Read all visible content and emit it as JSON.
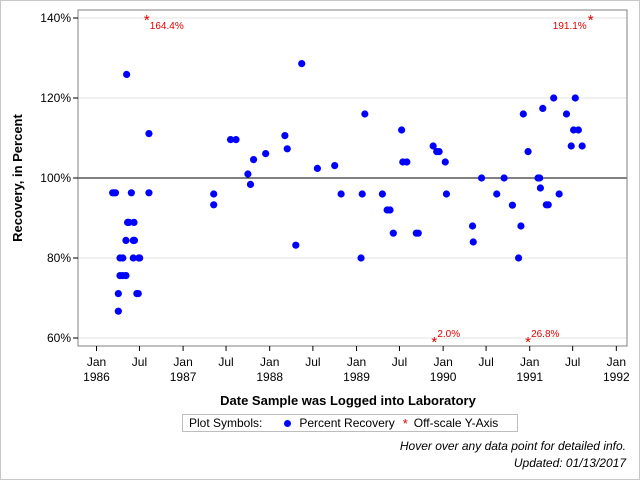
{
  "chart_data": {
    "type": "scatter",
    "title": "",
    "xlabel": "Date Sample was Logged into Laboratory",
    "ylabel": "Recovery, in Percent",
    "xlim": [
      "1985-10-15",
      "1992-02-15"
    ],
    "ylim": [
      58,
      142
    ],
    "reference_line": 100,
    "grid": true,
    "y_ticks": [
      {
        "v": 60,
        "label": "60%"
      },
      {
        "v": 80,
        "label": "80%"
      },
      {
        "v": 100,
        "label": "100%"
      },
      {
        "v": 120,
        "label": "120%"
      },
      {
        "v": 140,
        "label": "140%"
      }
    ],
    "x_ticks": [
      {
        "date": "1986-01-01",
        "label": "Jan",
        "year": "1986"
      },
      {
        "date": "1986-07-01",
        "label": "Jul",
        "year": ""
      },
      {
        "date": "1987-01-01",
        "label": "Jan",
        "year": "1987"
      },
      {
        "date": "1987-07-01",
        "label": "Jul",
        "year": ""
      },
      {
        "date": "1988-01-01",
        "label": "Jan",
        "year": "1988"
      },
      {
        "date": "1988-07-01",
        "label": "Jul",
        "year": ""
      },
      {
        "date": "1989-01-01",
        "label": "Jan",
        "year": "1989"
      },
      {
        "date": "1989-07-01",
        "label": "Jul",
        "year": ""
      },
      {
        "date": "1990-01-01",
        "label": "Jan",
        "year": "1990"
      },
      {
        "date": "1990-07-01",
        "label": "Jul",
        "year": ""
      },
      {
        "date": "1991-01-01",
        "label": "Jan",
        "year": "1991"
      },
      {
        "date": "1991-07-01",
        "label": "Jul",
        "year": ""
      },
      {
        "date": "1992-01-01",
        "label": "Jan",
        "year": "1992"
      }
    ],
    "series": [
      {
        "name": "Percent Recovery",
        "color": "#0000ff",
        "points": [
          {
            "x": "1986-03-10",
            "y": 96.3
          },
          {
            "x": "1986-03-16",
            "y": 96.3
          },
          {
            "x": "1986-03-22",
            "y": 96.3
          },
          {
            "x": "1986-04-03",
            "y": 71.1
          },
          {
            "x": "1986-04-03",
            "y": 66.7
          },
          {
            "x": "1986-04-10",
            "y": 80.0
          },
          {
            "x": "1986-04-10",
            "y": 75.6
          },
          {
            "x": "1986-04-22",
            "y": 80.0
          },
          {
            "x": "1986-04-22",
            "y": 75.6
          },
          {
            "x": "1986-05-05",
            "y": 84.4
          },
          {
            "x": "1986-05-05",
            "y": 75.6
          },
          {
            "x": "1986-05-08",
            "y": 125.9
          },
          {
            "x": "1986-05-12",
            "y": 88.9
          },
          {
            "x": "1986-05-18",
            "y": 88.9
          },
          {
            "x": "1986-05-28",
            "y": 96.3
          },
          {
            "x": "1986-06-05",
            "y": 84.4
          },
          {
            "x": "1986-06-05",
            "y": 80.0
          },
          {
            "x": "1986-06-08",
            "y": 88.9
          },
          {
            "x": "1986-06-10",
            "y": 84.4
          },
          {
            "x": "1986-06-20",
            "y": 71.1
          },
          {
            "x": "1986-06-26",
            "y": 71.1
          },
          {
            "x": "1986-06-28",
            "y": 80.0
          },
          {
            "x": "1986-07-02",
            "y": 80.0
          },
          {
            "x": "1986-08-10",
            "y": 96.3
          },
          {
            "x": "1986-08-10",
            "y": 111.1
          },
          {
            "x": "1987-05-10",
            "y": 96.0
          },
          {
            "x": "1987-05-10",
            "y": 93.3
          },
          {
            "x": "1987-07-20",
            "y": 109.6
          },
          {
            "x": "1987-08-12",
            "y": 109.6
          },
          {
            "x": "1987-10-01",
            "y": 101.0
          },
          {
            "x": "1987-10-12",
            "y": 98.4
          },
          {
            "x": "1987-10-25",
            "y": 104.6
          },
          {
            "x": "1987-12-15",
            "y": 106.1
          },
          {
            "x": "1988-03-05",
            "y": 110.6
          },
          {
            "x": "1988-03-15",
            "y": 107.3
          },
          {
            "x": "1988-04-20",
            "y": 83.2
          },
          {
            "x": "1988-05-15",
            "y": 128.6
          },
          {
            "x": "1988-07-20",
            "y": 102.4
          },
          {
            "x": "1988-10-01",
            "y": 103.1
          },
          {
            "x": "1988-10-28",
            "y": 96.0
          },
          {
            "x": "1989-01-20",
            "y": 80.0
          },
          {
            "x": "1989-01-25",
            "y": 96.0
          },
          {
            "x": "1989-02-05",
            "y": 116.0
          },
          {
            "x": "1989-04-20",
            "y": 96.0
          },
          {
            "x": "1989-05-10",
            "y": 92.0
          },
          {
            "x": "1989-05-22",
            "y": 92.0
          },
          {
            "x": "1989-06-05",
            "y": 86.2
          },
          {
            "x": "1989-07-10",
            "y": 112.0
          },
          {
            "x": "1989-07-15",
            "y": 104.0
          },
          {
            "x": "1989-08-01",
            "y": 104.0
          },
          {
            "x": "1989-09-10",
            "y": 86.2
          },
          {
            "x": "1989-09-18",
            "y": 86.2
          },
          {
            "x": "1989-11-20",
            "y": 108.0
          },
          {
            "x": "1989-12-05",
            "y": 106.6
          },
          {
            "x": "1989-12-15",
            "y": 106.6
          },
          {
            "x": "1990-01-10",
            "y": 104.0
          },
          {
            "x": "1990-01-15",
            "y": 96.0
          },
          {
            "x": "1990-05-05",
            "y": 88.0
          },
          {
            "x": "1990-05-08",
            "y": 84.0
          },
          {
            "x": "1990-06-12",
            "y": 100.0
          },
          {
            "x": "1990-08-15",
            "y": 96.0
          },
          {
            "x": "1990-09-15",
            "y": 100.0
          },
          {
            "x": "1990-10-20",
            "y": 93.2
          },
          {
            "x": "1990-11-15",
            "y": 80.0
          },
          {
            "x": "1990-11-25",
            "y": 88.0
          },
          {
            "x": "1990-12-05",
            "y": 116.0
          },
          {
            "x": "1990-12-25",
            "y": 106.6
          },
          {
            "x": "1991-02-05",
            "y": 100.0
          },
          {
            "x": "1991-02-12",
            "y": 100.0
          },
          {
            "x": "1991-02-15",
            "y": 97.5
          },
          {
            "x": "1991-02-25",
            "y": 117.4
          },
          {
            "x": "1991-03-12",
            "y": 93.3
          },
          {
            "x": "1991-03-20",
            "y": 93.3
          },
          {
            "x": "1991-04-12",
            "y": 120.0
          },
          {
            "x": "1991-05-05",
            "y": 96.0
          },
          {
            "x": "1991-06-05",
            "y": 116.0
          },
          {
            "x": "1991-06-25",
            "y": 108.0
          },
          {
            "x": "1991-07-05",
            "y": 112.0
          },
          {
            "x": "1991-07-12",
            "y": 120.0
          },
          {
            "x": "1991-07-25",
            "y": 112.0
          },
          {
            "x": "1991-08-10",
            "y": 108.0
          }
        ]
      },
      {
        "name": "Off-scale Y-Axis",
        "color": "#e00000",
        "points": [
          {
            "x": "1986-08-01",
            "y": 164.4,
            "label": "164.4%"
          },
          {
            "x": "1989-11-25",
            "y": 2.0,
            "label": "2.0%"
          },
          {
            "x": "1990-12-25",
            "y": 26.8,
            "label": "26.8%"
          },
          {
            "x": "1991-09-15",
            "y": 191.1,
            "label": "191.1%"
          }
        ]
      }
    ]
  },
  "legend": {
    "title": "Plot Symbols:",
    "items": [
      {
        "label": "Percent Recovery",
        "icon": "circle-marker",
        "color": "#0000ff"
      },
      {
        "label": "Off-scale Y-Axis",
        "icon": "asterisk-marker",
        "color": "#e00000"
      }
    ]
  },
  "footnotes": {
    "hover_hint": "Hover over any data point for detailed info.",
    "updated": "Updated: 01/13/2017"
  }
}
